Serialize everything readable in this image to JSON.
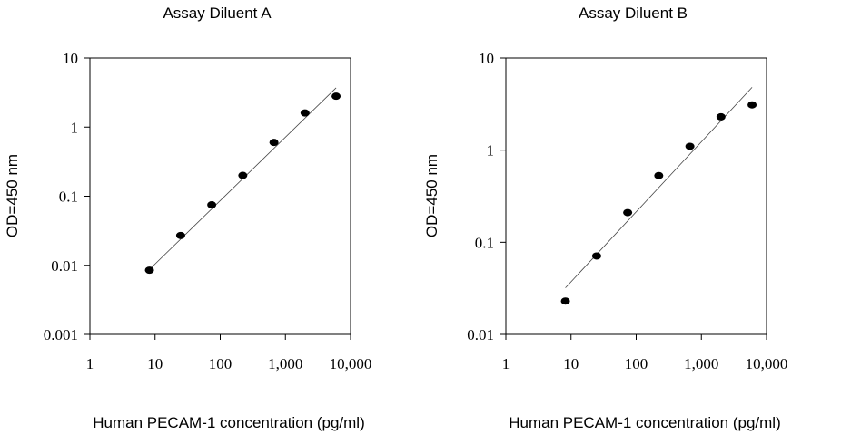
{
  "chart_data": [
    {
      "type": "scatter",
      "title": "Assay Diluent A",
      "xlabel": "Human PECAM-1 concentration (pg/ml)",
      "ylabel": "OD=450 nm",
      "x_scale": "log",
      "y_scale": "log",
      "xlim": [
        1,
        10000
      ],
      "ylim": [
        0.001,
        10
      ],
      "x_ticks": [
        1,
        10,
        100,
        1000,
        10000
      ],
      "x_tick_labels": [
        "1",
        "10",
        "100",
        "1,000",
        "10,000"
      ],
      "y_ticks": [
        0.001,
        0.01,
        0.1,
        1,
        10
      ],
      "y_tick_labels": [
        "0.001",
        "0.01",
        "0.1",
        "1",
        "10"
      ],
      "points": [
        {
          "x": 8.2,
          "y": 0.0085
        },
        {
          "x": 24.7,
          "y": 0.027
        },
        {
          "x": 74,
          "y": 0.075
        },
        {
          "x": 222,
          "y": 0.2
        },
        {
          "x": 667,
          "y": 0.6
        },
        {
          "x": 2000,
          "y": 1.6
        },
        {
          "x": 6000,
          "y": 2.8
        }
      ],
      "fit_line": [
        {
          "x": 8.2,
          "y": 0.0087
        },
        {
          "x": 6000,
          "y": 3.7
        }
      ],
      "grid": false,
      "legend": "none"
    },
    {
      "type": "scatter",
      "title": "Assay Diluent B",
      "xlabel": "Human PECAM-1 concentration (pg/ml)",
      "ylabel": "OD=450 nm",
      "x_scale": "log",
      "y_scale": "log",
      "xlim": [
        1,
        10000
      ],
      "ylim": [
        0.01,
        10
      ],
      "x_ticks": [
        1,
        10,
        100,
        1000,
        10000
      ],
      "x_tick_labels": [
        "1",
        "10",
        "100",
        "1,000",
        "10,000"
      ],
      "y_ticks": [
        0.01,
        0.1,
        1,
        10
      ],
      "y_tick_labels": [
        "0.01",
        "0.1",
        "1",
        "10"
      ],
      "points": [
        {
          "x": 8.2,
          "y": 0.023
        },
        {
          "x": 24.7,
          "y": 0.071
        },
        {
          "x": 74,
          "y": 0.21
        },
        {
          "x": 222,
          "y": 0.53
        },
        {
          "x": 667,
          "y": 1.1
        },
        {
          "x": 2000,
          "y": 2.3
        },
        {
          "x": 6000,
          "y": 3.1
        }
      ],
      "fit_line": [
        {
          "x": 8.2,
          "y": 0.032
        },
        {
          "x": 6000,
          "y": 4.8
        }
      ],
      "grid": false,
      "legend": "none"
    }
  ]
}
